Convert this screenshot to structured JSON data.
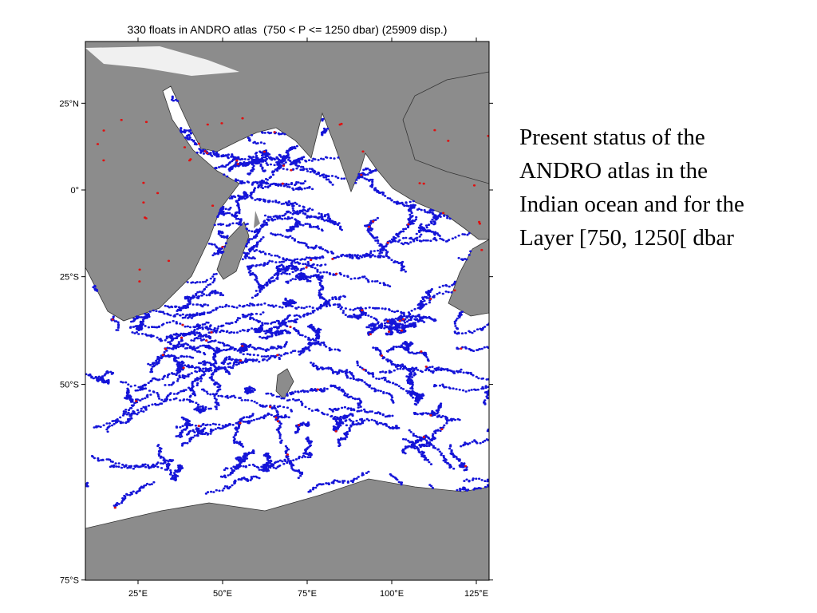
{
  "map": {
    "title": "330 floats in ANDRO atlas  (750 < P <= 1250 dbar) (25909 disp.)",
    "lat_ticks": [
      {
        "value": 25,
        "label": "25°N"
      },
      {
        "value": 0,
        "label": "0°"
      },
      {
        "value": -25,
        "label": "25°S"
      },
      {
        "value": -50,
        "label": "50°S"
      },
      {
        "value": -75,
        "label": "75°S"
      }
    ],
    "lon_ticks": [
      {
        "value": 25,
        "label": "25°E"
      },
      {
        "value": 50,
        "label": "50°E"
      },
      {
        "value": 75,
        "label": "75°E"
      },
      {
        "value": 100,
        "label": "100°E"
      },
      {
        "value": 125,
        "label": "125°E"
      }
    ]
  },
  "side_text": [
    "Present status of the",
    "ANDRO atlas in the",
    "Indian ocean and for the",
    "Layer [750, 1250[ dbar"
  ]
}
